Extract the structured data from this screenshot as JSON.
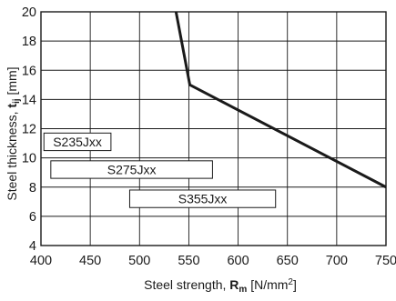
{
  "chart_data": {
    "type": "line",
    "xlabel_prefix": "Steel strength, ",
    "xlabel_symbol": "R",
    "xlabel_subscript": "m",
    "xlabel_unit": " [N/mm",
    "xlabel_unit_sup": "2",
    "xlabel_unit_end": "]",
    "ylabel_prefix": "Steel thickness, ",
    "ylabel_symbol": "t",
    "ylabel_subscript": "ij",
    "ylabel_unit": " [mm]",
    "xlim": [
      400,
      750
    ],
    "ylim": [
      4,
      20
    ],
    "xticks": [
      400,
      450,
      500,
      550,
      600,
      650,
      700,
      750
    ],
    "yticks": [
      4,
      6,
      8,
      10,
      12,
      14,
      16,
      18,
      20
    ],
    "grid": true,
    "series": [
      {
        "points": [
          {
            "x": 537,
            "y": 20
          },
          {
            "x": 551,
            "y": 15
          },
          {
            "x": 750,
            "y": 8
          }
        ]
      }
    ],
    "grades": [
      {
        "label": "S235Jxx",
        "x_min": 403,
        "x_max": 471,
        "y_min": 10.5,
        "y_max": 11.7
      },
      {
        "label": "S275Jxx",
        "x_min": 410,
        "x_max": 574,
        "y_min": 8.6,
        "y_max": 9.8
      },
      {
        "label": "S355Jxx",
        "x_min": 490,
        "x_max": 638,
        "y_min": 6.6,
        "y_max": 7.8
      }
    ]
  }
}
